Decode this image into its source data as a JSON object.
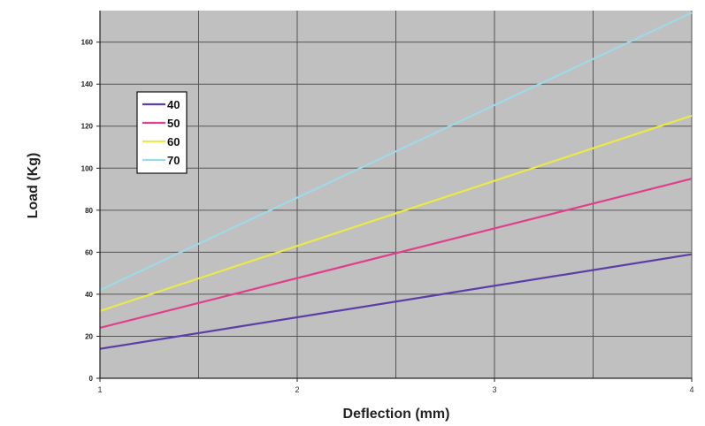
{
  "chart_data": {
    "type": "line",
    "title": "",
    "xlabel": "Deflection (mm)",
    "ylabel": "Load (Kg)",
    "xlim": [
      1,
      4
    ],
    "ylim": [
      0,
      175
    ],
    "x_ticks": [
      "1",
      "2",
      "3",
      "4"
    ],
    "y_ticks": [
      "0",
      "20",
      "40",
      "60",
      "80",
      "100",
      "120",
      "140",
      "160"
    ],
    "grid": true,
    "legend_position": "top-left",
    "plot_background": "#c0c0c0",
    "x": [
      1,
      4
    ],
    "series": [
      {
        "name": "40",
        "color": "#5b3fa6",
        "values": [
          14,
          59
        ]
      },
      {
        "name": "50",
        "color": "#e0408a",
        "values": [
          24,
          95
        ]
      },
      {
        "name": "60",
        "color": "#e9e94a",
        "values": [
          32,
          125
        ]
      },
      {
        "name": "70",
        "color": "#9fd9e6",
        "values": [
          42,
          174
        ]
      }
    ]
  }
}
